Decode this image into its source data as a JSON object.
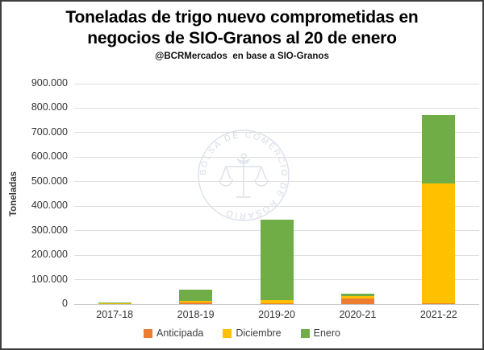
{
  "header": {
    "title_line1": "Toneladas de trigo nuevo comprometidas en",
    "title_line2": "negocios de SIO-Granos al 20 de enero",
    "subtitle": "@BCRMercados  en base a SIO-Granos"
  },
  "watermark": {
    "text": "BOLSA DE COMERCIO DE ROSARIO"
  },
  "chart_data": {
    "type": "bar",
    "stacked": true,
    "title": "Toneladas de trigo nuevo comprometidas en negocios de SIO-Granos al 20 de enero",
    "subtitle": "@BCRMercados en base a SIO-Granos",
    "xlabel": "",
    "ylabel": "Toneladas",
    "categories": [
      "2017-18",
      "2018-19",
      "2019-20",
      "2020-21",
      "2021-22"
    ],
    "series": [
      {
        "name": "Anticipada",
        "color": "#ED7D31",
        "values": [
          0,
          7000,
          3000,
          22000,
          4000
        ]
      },
      {
        "name": "Diciembre",
        "color": "#FFC000",
        "values": [
          5000,
          7000,
          12000,
          10000,
          490000
        ]
      },
      {
        "name": "Enero",
        "color": "#70AD47",
        "values": [
          2000,
          45000,
          330000,
          10000,
          278000
        ]
      }
    ],
    "totals": [
      7000,
      59000,
      345000,
      42000,
      772000
    ],
    "ylim": [
      0,
      900000
    ],
    "ytick_step": 100000,
    "ytick_format": "thousands-dot",
    "grid": "horizontal",
    "legend_position": "bottom"
  }
}
